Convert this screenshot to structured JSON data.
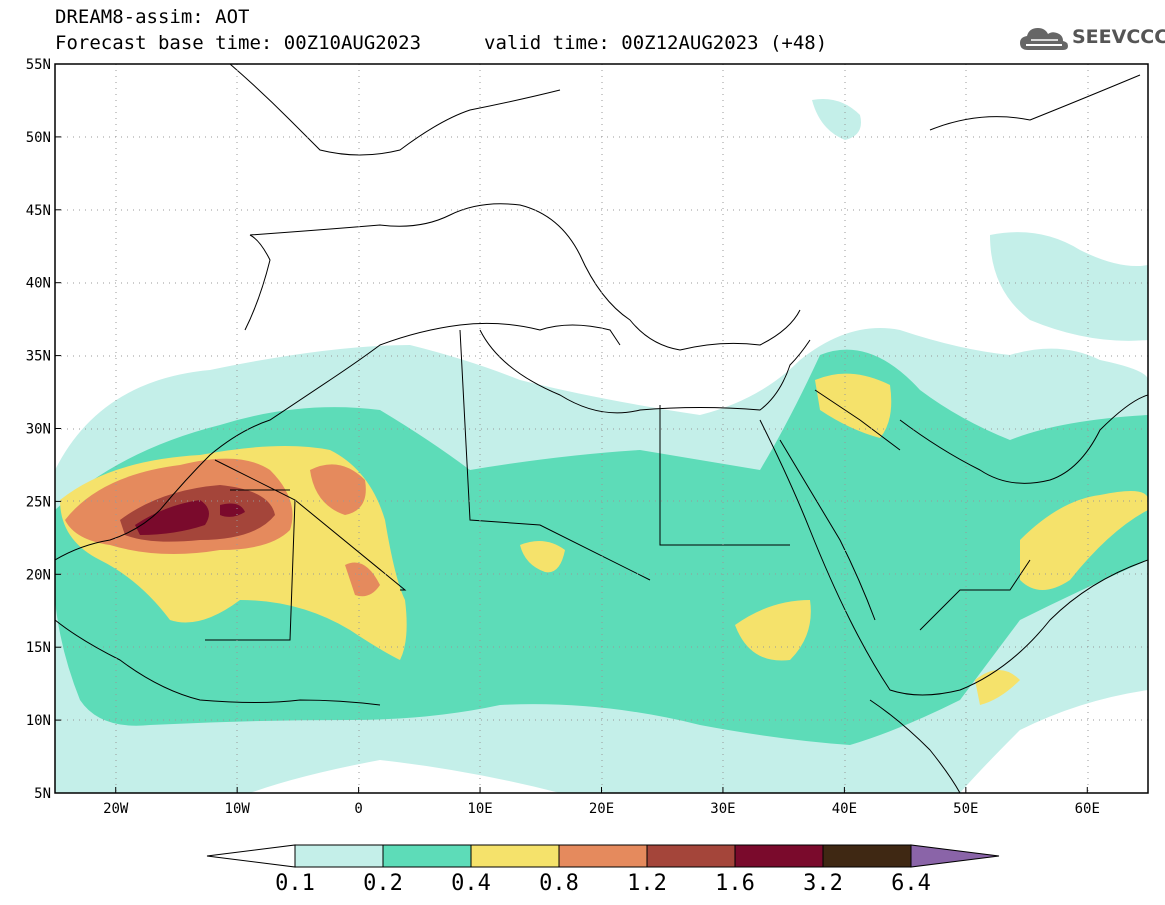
{
  "header": {
    "title": "DREAM8-assim: AOT",
    "base_time": "Forecast base time: 00Z10AUG2023",
    "valid_time": "valid time: 00Z12AUG2023 (+48)"
  },
  "logo": {
    "text": "SEEVCCC",
    "icon": "cloud-icon"
  },
  "map": {
    "lon_range": [
      -25,
      65
    ],
    "lat_range": [
      5,
      55
    ],
    "x_ticks": [
      {
        "lon": -20,
        "label": "20W"
      },
      {
        "lon": -10,
        "label": "10W"
      },
      {
        "lon": 0,
        "label": "0"
      },
      {
        "lon": 10,
        "label": "10E"
      },
      {
        "lon": 20,
        "label": "20E"
      },
      {
        "lon": 30,
        "label": "30E"
      },
      {
        "lon": 40,
        "label": "40E"
      },
      {
        "lon": 50,
        "label": "50E"
      },
      {
        "lon": 60,
        "label": "60E"
      }
    ],
    "y_ticks": [
      {
        "lat": 55,
        "label": "55N"
      },
      {
        "lat": 50,
        "label": "50N"
      },
      {
        "lat": 45,
        "label": "45N"
      },
      {
        "lat": 40,
        "label": "40N"
      },
      {
        "lat": 35,
        "label": "35N"
      },
      {
        "lat": 30,
        "label": "30N"
      },
      {
        "lat": 25,
        "label": "25N"
      },
      {
        "lat": 20,
        "label": "20N"
      },
      {
        "lat": 15,
        "label": "15N"
      },
      {
        "lat": 10,
        "label": "10N"
      },
      {
        "lat": 5,
        "label": "5N"
      }
    ],
    "grid": "dotted"
  },
  "colorbar": {
    "levels": [
      "0.1",
      "0.2",
      "0.4",
      "0.8",
      "1.2",
      "1.6",
      "3.2",
      "6.4"
    ],
    "colors": [
      "#ffffff",
      "#c4efe9",
      "#5ddcb8",
      "#f5e26b",
      "#e58a5d",
      "#a4453a",
      "#7a0a2c",
      "#3f2813",
      "#8a64a8"
    ]
  }
}
